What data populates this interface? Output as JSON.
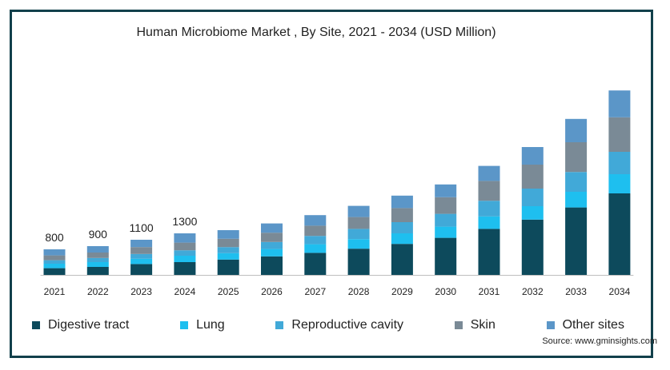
{
  "chart_data": {
    "type": "bar",
    "stacked": true,
    "title": "Human Microbiome Market , By Site, 2021 - 2034 (USD Million)",
    "xlabel": "",
    "ylabel": "",
    "ylim": [
      0,
      6000
    ],
    "grid": false,
    "legend_position": "bottom",
    "categories": [
      "2021",
      "2022",
      "2023",
      "2024",
      "2025",
      "2026",
      "2027",
      "2028",
      "2029",
      "2030",
      "2031",
      "2032",
      "2033",
      "2034"
    ],
    "total_labels": [
      "800",
      "900",
      "1100",
      "1300",
      "",
      "",
      "",
      "",
      "",
      "",
      "",
      "",
      "",
      ""
    ],
    "series": [
      {
        "name": "Digestive tract",
        "color": "#0d4a5c",
        "values": [
          210,
          250,
          340,
          400,
          480,
          580,
          690,
          820,
          970,
          1160,
          1440,
          1730,
          2110,
          2550
        ]
      },
      {
        "name": "Lung",
        "color": "#1ebfef",
        "values": [
          140,
          150,
          165,
          200,
          200,
          230,
          270,
          300,
          330,
          350,
          390,
          420,
          490,
          600
        ]
      },
      {
        "name": "Reproductive cavity",
        "color": "#41a9d8",
        "values": [
          110,
          130,
          150,
          170,
          190,
          220,
          260,
          320,
          350,
          400,
          490,
          550,
          620,
          700
        ]
      },
      {
        "name": "Skin",
        "color": "#7a8a96",
        "values": [
          150,
          170,
          215,
          240,
          260,
          290,
          320,
          370,
          440,
          520,
          620,
          750,
          930,
          1080
        ]
      },
      {
        "name": "Other sites",
        "color": "#5b96c8",
        "values": [
          190,
          200,
          230,
          290,
          270,
          290,
          330,
          350,
          390,
          400,
          470,
          550,
          730,
          840
        ]
      }
    ]
  },
  "source": "Source: www.gminsights.com"
}
